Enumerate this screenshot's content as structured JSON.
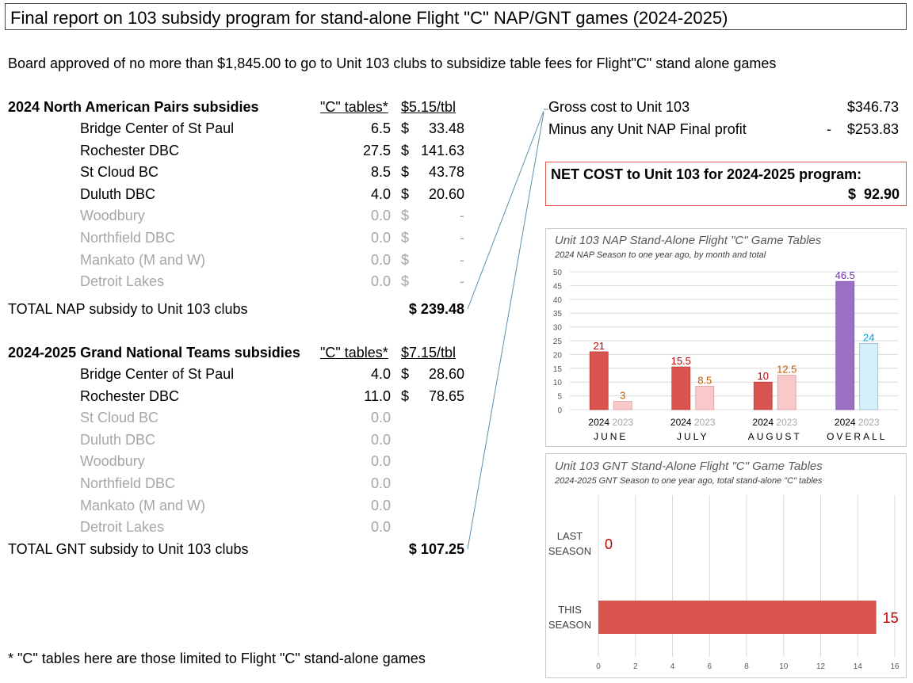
{
  "title": "Final report on 103 subsidy program for stand-alone Flight \"C\" NAP/GNT games (2024-2025)",
  "board_note": "Board approved of no more than $1,845.00 to go to Unit 103 clubs to subsidize table fees for Flight\"C\" stand alone games",
  "nap": {
    "heading": "2024 North American Pairs subsidies",
    "col_tables": "\"C\" tables*",
    "col_rate": "$5.15/tbl",
    "rows": [
      {
        "club": "Bridge Center of St Paul",
        "tables": "6.5",
        "dollar": "$",
        "amount": "33.48",
        "muted": false
      },
      {
        "club": "Rochester DBC",
        "tables": "27.5",
        "dollar": "$",
        "amount": "141.63",
        "muted": false
      },
      {
        "club": "St Cloud BC",
        "tables": "8.5",
        "dollar": "$",
        "amount": "43.78",
        "muted": false
      },
      {
        "club": "Duluth DBC",
        "tables": "4.0",
        "dollar": "$",
        "amount": "20.60",
        "muted": false
      },
      {
        "club": "Woodbury",
        "tables": "0.0",
        "dollar": "$",
        "amount": "-",
        "muted": true
      },
      {
        "club": "Northfield DBC",
        "tables": "0.0",
        "dollar": "$",
        "amount": "-",
        "muted": true
      },
      {
        "club": "Mankato (M and W)",
        "tables": "0.0",
        "dollar": "$",
        "amount": "-",
        "muted": true
      },
      {
        "club": "Detroit Lakes",
        "tables": "0.0",
        "dollar": "$",
        "amount": "-",
        "muted": true
      }
    ],
    "total_label": "TOTAL NAP subsidy to Unit 103 clubs",
    "total_value": "$ 239.48"
  },
  "gnt": {
    "heading": "2024-2025 Grand National Teams subsidies",
    "col_tables": "\"C\" tables*",
    "col_rate": "$7.15/tbl",
    "rows": [
      {
        "club": "Bridge Center of St Paul",
        "tables": "4.0",
        "dollar": "$",
        "amount": "28.60",
        "muted": false
      },
      {
        "club": "Rochester DBC",
        "tables": "11.0",
        "dollar": "$",
        "amount": "78.65",
        "muted": false
      },
      {
        "club": "St Cloud BC",
        "tables": "0.0",
        "dollar": "",
        "amount": "",
        "muted": true
      },
      {
        "club": "Duluth DBC",
        "tables": "0.0",
        "dollar": "",
        "amount": "",
        "muted": true
      },
      {
        "club": "Woodbury",
        "tables": "0.0",
        "dollar": "",
        "amount": "",
        "muted": true
      },
      {
        "club": "Northfield DBC",
        "tables": "0.0",
        "dollar": "",
        "amount": "",
        "muted": true
      },
      {
        "club": "Mankato (M and W)",
        "tables": "0.0",
        "dollar": "",
        "amount": "",
        "muted": true
      },
      {
        "club": "Detroit Lakes",
        "tables": "0.0",
        "dollar": "",
        "amount": "",
        "muted": true
      }
    ],
    "total_label": "TOTAL GNT subsidy to Unit 103 clubs",
    "total_value": "$ 107.25"
  },
  "summary": {
    "gross_label": "Gross cost to Unit 103",
    "gross_value": "$346.73",
    "minus_label": "Minus any Unit NAP Final profit",
    "minus_sign": "-",
    "minus_value": "$253.83",
    "net_label": "NET COST to Unit 103 for 2024-2025 program:",
    "net_value": "$  92.90"
  },
  "footnote": "* \"C\" tables here are those limited to Flight \"C\" stand-alone games",
  "colors": {
    "red_dark": "#d9534f",
    "red_light": "#f9c9c9",
    "purple": "#9b6fc4",
    "blue_light": "#d4f0fb",
    "label_red": "#c00000",
    "label_orange": "#c05a00",
    "label_purple": "#7030a0",
    "label_blue": "#00a0e0"
  },
  "chart_data": [
    {
      "type": "bar",
      "title": "Unit 103 NAP Stand-Alone Flight \"C\" Game Tables",
      "subtitle": "2024 NAP Season to one year ago, by month and total",
      "categories": [
        "JUNE",
        "JULY",
        "AUGUST",
        "OVERALL"
      ],
      "series": [
        {
          "name": "2024",
          "values": [
            21,
            15.5,
            10,
            46.5
          ]
        },
        {
          "name": "2023",
          "values": [
            3,
            8.5,
            12.5,
            24
          ]
        }
      ],
      "data_labels": [
        [
          "21",
          "3"
        ],
        [
          "15.5",
          "8.5"
        ],
        [
          "10",
          "12.5"
        ],
        [
          "46.5",
          "24"
        ]
      ],
      "ylim": [
        0,
        50
      ],
      "yticks": [
        "0",
        "5",
        "10",
        "15",
        "20",
        "25",
        "30",
        "35",
        "40",
        "45",
        "50"
      ],
      "grid": true
    },
    {
      "type": "bar",
      "orientation": "horizontal",
      "title": "Unit 103 GNT Stand-Alone Flight \"C\" Game Tables",
      "subtitle": "2024-2025 GNT Season to one year ago, total stand-alone \"C\" tables",
      "categories": [
        [
          "LAST",
          "SEASON"
        ],
        [
          "THIS",
          "SEASON"
        ]
      ],
      "values": [
        0,
        15
      ],
      "data_labels": [
        "0",
        "15"
      ],
      "xlim": [
        0,
        16
      ],
      "xticks": [
        "0",
        "2",
        "4",
        "6",
        "8",
        "10",
        "12",
        "14",
        "16"
      ],
      "grid": true
    }
  ]
}
